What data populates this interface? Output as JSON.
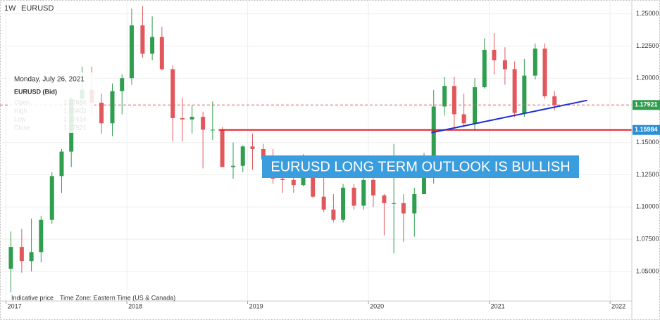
{
  "chart_data": {
    "type": "candlestick",
    "interval": "1W",
    "title": "EURUSD",
    "x": [
      2017.04,
      2017.13,
      2017.21,
      2017.29,
      2017.38,
      2017.46,
      2017.54,
      2017.63,
      2017.71,
      2017.79,
      2017.88,
      2017.96,
      2018.04,
      2018.13,
      2018.21,
      2018.29,
      2018.38,
      2018.46,
      2018.54,
      2018.63,
      2018.71,
      2018.79,
      2018.88,
      2018.96,
      2019.04,
      2019.13,
      2019.21,
      2019.29,
      2019.38,
      2019.46,
      2019.54,
      2019.63,
      2019.71,
      2019.79,
      2019.88,
      2019.96,
      2020.04,
      2020.13,
      2020.21,
      2020.29,
      2020.38,
      2020.46,
      2020.54,
      2020.63,
      2020.71,
      2020.79,
      2020.88,
      2020.96,
      2021.04,
      2021.13,
      2021.21,
      2021.29,
      2021.38,
      2021.46,
      2021.54
    ],
    "open": [
      1.052,
      1.069,
      1.058,
      1.065,
      1.09,
      1.124,
      1.143,
      1.184,
      1.191,
      1.181,
      1.165,
      1.19,
      1.2,
      1.241,
      1.219,
      1.232,
      1.207,
      1.169,
      1.168,
      1.17,
      1.16,
      1.16,
      1.131,
      1.132,
      1.147,
      1.145,
      1.137,
      1.122,
      1.121,
      1.117,
      1.137,
      1.108,
      1.098,
      1.09,
      1.115,
      1.101,
      1.121,
      1.109,
      1.103,
      1.103,
      1.095,
      1.11,
      1.123,
      1.178,
      1.194,
      1.172,
      1.165,
      1.193,
      1.222,
      1.214,
      1.207,
      1.173,
      1.202,
      1.223,
      1.186
    ],
    "high": [
      1.081,
      1.083,
      1.091,
      1.093,
      1.127,
      1.145,
      1.185,
      1.209,
      1.209,
      1.188,
      1.196,
      1.203,
      1.254,
      1.256,
      1.248,
      1.24,
      1.21,
      1.185,
      1.179,
      1.174,
      1.182,
      1.162,
      1.15,
      1.148,
      1.157,
      1.149,
      1.145,
      1.133,
      1.127,
      1.141,
      1.139,
      1.125,
      1.11,
      1.118,
      1.118,
      1.124,
      1.124,
      1.11,
      1.149,
      1.11,
      1.115,
      1.142,
      1.191,
      1.201,
      1.201,
      1.188,
      1.2,
      1.231,
      1.235,
      1.224,
      1.213,
      1.215,
      1.227,
      1.227,
      1.19
    ],
    "low": [
      1.034,
      1.049,
      1.05,
      1.057,
      1.087,
      1.111,
      1.131,
      1.171,
      1.171,
      1.157,
      1.155,
      1.172,
      1.195,
      1.216,
      1.214,
      1.206,
      1.151,
      1.151,
      1.157,
      1.13,
      1.152,
      1.132,
      1.122,
      1.127,
      1.129,
      1.123,
      1.118,
      1.111,
      1.111,
      1.116,
      1.107,
      1.096,
      1.088,
      1.088,
      1.098,
      1.098,
      1.1,
      1.078,
      1.064,
      1.073,
      1.077,
      1.11,
      1.118,
      1.171,
      1.161,
      1.162,
      1.16,
      1.192,
      1.203,
      1.195,
      1.17,
      1.17,
      1.199,
      1.184,
      1.175
    ],
    "close": [
      1.069,
      1.058,
      1.065,
      1.09,
      1.124,
      1.143,
      1.184,
      1.191,
      1.181,
      1.165,
      1.19,
      1.2,
      1.241,
      1.219,
      1.232,
      1.207,
      1.169,
      1.168,
      1.17,
      1.16,
      1.16,
      1.131,
      1.132,
      1.147,
      1.145,
      1.137,
      1.122,
      1.121,
      1.117,
      1.137,
      1.108,
      1.098,
      1.09,
      1.115,
      1.101,
      1.121,
      1.109,
      1.103,
      1.103,
      1.095,
      1.11,
      1.123,
      1.178,
      1.194,
      1.172,
      1.165,
      1.193,
      1.222,
      1.214,
      1.207,
      1.173,
      1.202,
      1.223,
      1.186,
      1.179
    ],
    "up_color": "#2f9e4f",
    "down_color": "#e2575c",
    "xlim": [
      2016.95,
      2022.18
    ],
    "xticks": [
      2017,
      2018,
      2019,
      2020,
      2021,
      2022
    ],
    "ylim": [
      1.027,
      1.258
    ],
    "yticks": [
      {
        "value": 1.05,
        "label": "1.05000"
      },
      {
        "value": 1.075,
        "label": "1.07500"
      },
      {
        "value": 1.1,
        "label": "1.10000"
      },
      {
        "value": 1.125,
        "label": "1.12500"
      },
      {
        "value": 1.15,
        "label": "1.15000"
      },
      {
        "value": 1.2,
        "label": "1.20000"
      },
      {
        "value": 1.225,
        "label": "1.22500"
      },
      {
        "value": 1.25,
        "label": "1.25000"
      }
    ],
    "grid": true,
    "last_price": {
      "value": 1.17921,
      "color": "#2f9e4f"
    },
    "support_line": {
      "value": 1.15984,
      "start_x": 2018.76,
      "color": "#e31b23",
      "tag_color": "#2b8fd6"
    },
    "trend_line": {
      "x": [
        2020.52,
        2021.81
      ],
      "y": [
        1.1577,
        1.1828
      ],
      "color": "#1f2fd6"
    },
    "banner": "EURUSD LONG TERM OUTLOOK IS BULLISH",
    "info": {
      "date": "Monday, July 26, 2021",
      "instrument": "EURUSD (Bid)",
      "fields": [
        {
          "label": "Open",
          "value": 1.17684
        },
        {
          "label": "High",
          "value": 1.18403
        },
        {
          "label": "Low",
          "value": 1.17414
        },
        {
          "label": "Close",
          "value": 1.17921
        }
      ]
    },
    "footer": {
      "note": "Indicative price",
      "timezone": "Time Zone: Eastern Time (US & Canada)"
    }
  }
}
